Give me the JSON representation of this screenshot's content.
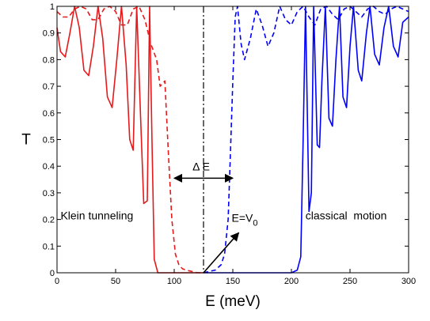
{
  "chart_data": {
    "type": "line",
    "xlabel": "E (meV)",
    "ylabel": "T",
    "xlim": [
      0,
      300
    ],
    "ylim": [
      0,
      1
    ],
    "x_ticks": [
      0,
      50,
      100,
      150,
      200,
      250,
      300
    ],
    "x_tick_labels": [
      "0",
      "50",
      "100",
      "150",
      "200",
      "250",
      "300"
    ],
    "y_ticks": [
      0,
      0.1,
      0.2,
      0.3,
      0.4,
      0.5,
      0.6,
      0.7,
      0.8,
      0.9,
      1
    ],
    "y_tick_labels": [
      "0",
      "0.1",
      "0.2",
      "0.3",
      "0.4",
      "0.5",
      "0.6",
      "0.7",
      "0.8",
      "0.9",
      "1"
    ],
    "grid": false,
    "colors": {
      "red": "#e41a1c",
      "blue": "#0000ff",
      "black": "#000000"
    },
    "series": [
      {
        "color": "#e41a1c",
        "style": "solid",
        "x": [
          0,
          3,
          7,
          11,
          15,
          19,
          23,
          27,
          31,
          35,
          39,
          43,
          47,
          51,
          55,
          59,
          62,
          65,
          68,
          71,
          74,
          77,
          79,
          81,
          83,
          86,
          90,
          95,
          100,
          110,
          120,
          125
        ],
        "y": [
          0.92,
          0.83,
          0.81,
          0.9,
          1.0,
          0.92,
          0.76,
          0.74,
          0.85,
          1.0,
          0.88,
          0.66,
          0.62,
          0.8,
          1.0,
          0.78,
          0.5,
          0.46,
          1.0,
          0.62,
          0.26,
          0.27,
          1.0,
          0.5,
          0.05,
          0.0,
          0.0,
          0.0,
          0.0,
          0.0,
          0.0,
          0.0
        ]
      },
      {
        "color": "#e41a1c",
        "style": "dashed",
        "x": [
          0,
          5,
          10,
          15,
          20,
          25,
          30,
          35,
          40,
          45,
          50,
          55,
          60,
          65,
          70,
          75,
          80,
          85,
          88,
          92,
          95,
          98,
          101,
          104,
          107,
          110,
          115,
          120,
          125
        ],
        "y": [
          0.98,
          0.96,
          0.96,
          0.99,
          1.0,
          0.99,
          0.95,
          0.95,
          0.99,
          1.0,
          0.98,
          0.93,
          0.93,
          0.99,
          1.0,
          0.95,
          0.86,
          0.8,
          0.7,
          0.72,
          0.45,
          0.2,
          0.07,
          0.03,
          0.015,
          0.01,
          0.005,
          0.0,
          0.0
        ]
      },
      {
        "color": "#0000ff",
        "style": "dashed",
        "x": [
          125,
          130,
          135,
          140,
          143,
          146,
          148,
          150,
          152,
          154,
          157,
          160,
          165,
          170,
          175,
          180,
          185,
          190,
          195,
          200,
          205,
          210,
          215,
          220,
          225,
          230,
          235,
          240,
          245,
          250,
          255,
          260,
          265,
          270,
          275,
          280,
          285,
          290,
          295,
          300
        ],
        "y": [
          0.0,
          0.005,
          0.01,
          0.03,
          0.07,
          0.2,
          0.45,
          0.72,
          0.96,
          1.0,
          0.86,
          0.8,
          0.88,
          0.99,
          0.93,
          0.85,
          0.9,
          1.0,
          0.95,
          0.93,
          0.98,
          1.0,
          0.96,
          0.93,
          0.99,
          1.0,
          0.97,
          0.95,
          0.99,
          1.0,
          0.98,
          0.96,
          0.99,
          1.0,
          0.98,
          0.97,
          0.99,
          1.0,
          0.99,
          0.98
        ]
      },
      {
        "color": "#0000ff",
        "style": "solid",
        "x": [
          125,
          150,
          180,
          200,
          205,
          208,
          210,
          212,
          215,
          217,
          219,
          222,
          224,
          226,
          229,
          232,
          235,
          238,
          241,
          244,
          247,
          250,
          253,
          257,
          260,
          264,
          267,
          271,
          275,
          279,
          283,
          287,
          291,
          295,
          300
        ],
        "y": [
          0.0,
          0.0,
          0.0,
          0.0,
          0.01,
          0.06,
          0.5,
          1.0,
          0.23,
          0.3,
          1.0,
          0.48,
          0.47,
          0.72,
          1.0,
          0.58,
          0.55,
          0.8,
          1.0,
          0.66,
          0.62,
          0.85,
          1.0,
          0.76,
          0.72,
          0.9,
          1.0,
          0.82,
          0.78,
          0.92,
          1.0,
          0.85,
          0.81,
          0.94,
          0.96
        ]
      }
    ],
    "vertical_line": {
      "x": 125,
      "style": "dashdot",
      "color": "#000000"
    },
    "annotations": {
      "delta_e": {
        "text": "Δ E",
        "x": 123,
        "y": 0.385,
        "arrow_from": 100,
        "arrow_to": 150,
        "arrow_y": 0.355
      },
      "e_equals_v0": {
        "text": "E=V",
        "subscript": "0",
        "x": 149,
        "y": 0.192,
        "arrow_from": [
          125,
          0.0
        ],
        "arrow_to": [
          155,
          0.15
        ]
      },
      "klein": {
        "text": "Klein tunneling",
        "x": 3,
        "y": 0.2
      },
      "classical": {
        "text": "classical  motion",
        "x": 212,
        "y": 0.2
      }
    }
  }
}
